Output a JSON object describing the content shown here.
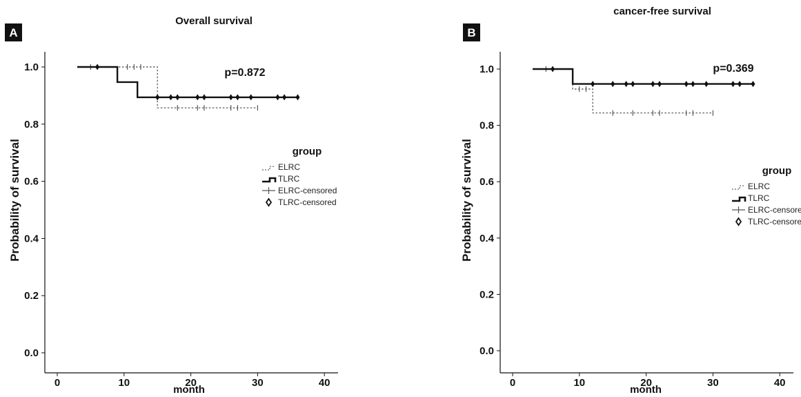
{
  "chart_data": [
    {
      "panel_letter": "A",
      "type": "line",
      "subtype": "kaplan-meier step",
      "title": "Overall survival",
      "xlabel": "month",
      "ylabel": "Probability of survival",
      "xlim": [
        0,
        40
      ],
      "ylim": [
        0,
        1
      ],
      "x_ticks": [
        "0",
        "10",
        "20",
        "30",
        "40"
      ],
      "y_ticks": [
        "0.0",
        "0.2",
        "0.4",
        "0.6",
        "0.8",
        "1.0"
      ],
      "annotation": "p=0.872",
      "legend": {
        "title": "group",
        "entries": [
          "ELRC",
          "TLRC",
          "ELRC-censored",
          "TLRC-censored"
        ]
      },
      "series": [
        {
          "name": "ELRC",
          "style": "dotted",
          "steps": [
            [
              3,
              1.0
            ],
            [
              15,
              1.0
            ],
            [
              15,
              0.857
            ],
            [
              30,
              0.857
            ]
          ],
          "censored": [
            [
              5,
              1.0
            ],
            [
              10.5,
              1.0
            ],
            [
              11.5,
              1.0
            ],
            [
              12.5,
              1.0
            ],
            [
              18,
              0.857
            ],
            [
              21,
              0.857
            ],
            [
              22,
              0.857
            ],
            [
              26,
              0.857
            ],
            [
              27,
              0.857
            ],
            [
              30,
              0.857
            ]
          ]
        },
        {
          "name": "TLRC",
          "style": "solid",
          "steps": [
            [
              3,
              1.0
            ],
            [
              9,
              1.0
            ],
            [
              9,
              0.947
            ],
            [
              12,
              0.947
            ],
            [
              12,
              0.894
            ],
            [
              36,
              0.894
            ]
          ],
          "censored": [
            [
              6,
              1.0
            ],
            [
              15,
              0.894
            ],
            [
              17,
              0.894
            ],
            [
              18,
              0.894
            ],
            [
              21,
              0.894
            ],
            [
              22,
              0.894
            ],
            [
              26,
              0.894
            ],
            [
              27,
              0.894
            ],
            [
              29,
              0.894
            ],
            [
              33,
              0.894
            ],
            [
              34,
              0.894
            ],
            [
              36,
              0.894
            ]
          ]
        }
      ]
    },
    {
      "panel_letter": "B",
      "type": "line",
      "subtype": "kaplan-meier step",
      "title": "cancer-free survival",
      "xlabel": "month",
      "ylabel": "Probability of survival",
      "xlim": [
        0,
        40
      ],
      "ylim": [
        0,
        1
      ],
      "x_ticks": [
        "0",
        "10",
        "20",
        "30",
        "40"
      ],
      "y_ticks": [
        "0.0",
        "0.2",
        "0.4",
        "0.6",
        "0.8",
        "1.0"
      ],
      "annotation": "p=0.369",
      "legend": {
        "title": "group",
        "entries": [
          "ELRC",
          "TLRC",
          "ELRC-censored",
          "TLRC-censored"
        ]
      },
      "series": [
        {
          "name": "ELRC",
          "style": "dotted",
          "steps": [
            [
              3,
              1.0
            ],
            [
              9,
              1.0
            ],
            [
              9,
              0.929
            ],
            [
              12,
              0.929
            ],
            [
              12,
              0.844
            ],
            [
              30,
              0.844
            ]
          ],
          "censored": [
            [
              5,
              1.0
            ],
            [
              10,
              0.929
            ],
            [
              11,
              0.929
            ],
            [
              15,
              0.844
            ],
            [
              18,
              0.844
            ],
            [
              21,
              0.844
            ],
            [
              22,
              0.844
            ],
            [
              26,
              0.844
            ],
            [
              27,
              0.844
            ],
            [
              30,
              0.844
            ]
          ]
        },
        {
          "name": "TLRC",
          "style": "solid",
          "steps": [
            [
              3,
              1.0
            ],
            [
              9,
              1.0
            ],
            [
              9,
              0.947
            ],
            [
              36,
              0.947
            ]
          ],
          "censored": [
            [
              6,
              1.0
            ],
            [
              12,
              0.947
            ],
            [
              15,
              0.947
            ],
            [
              17,
              0.947
            ],
            [
              18,
              0.947
            ],
            [
              21,
              0.947
            ],
            [
              22,
              0.947
            ],
            [
              26,
              0.947
            ],
            [
              27,
              0.947
            ],
            [
              29,
              0.947
            ],
            [
              33,
              0.947
            ],
            [
              34,
              0.947
            ],
            [
              36,
              0.947
            ]
          ]
        }
      ]
    }
  ]
}
